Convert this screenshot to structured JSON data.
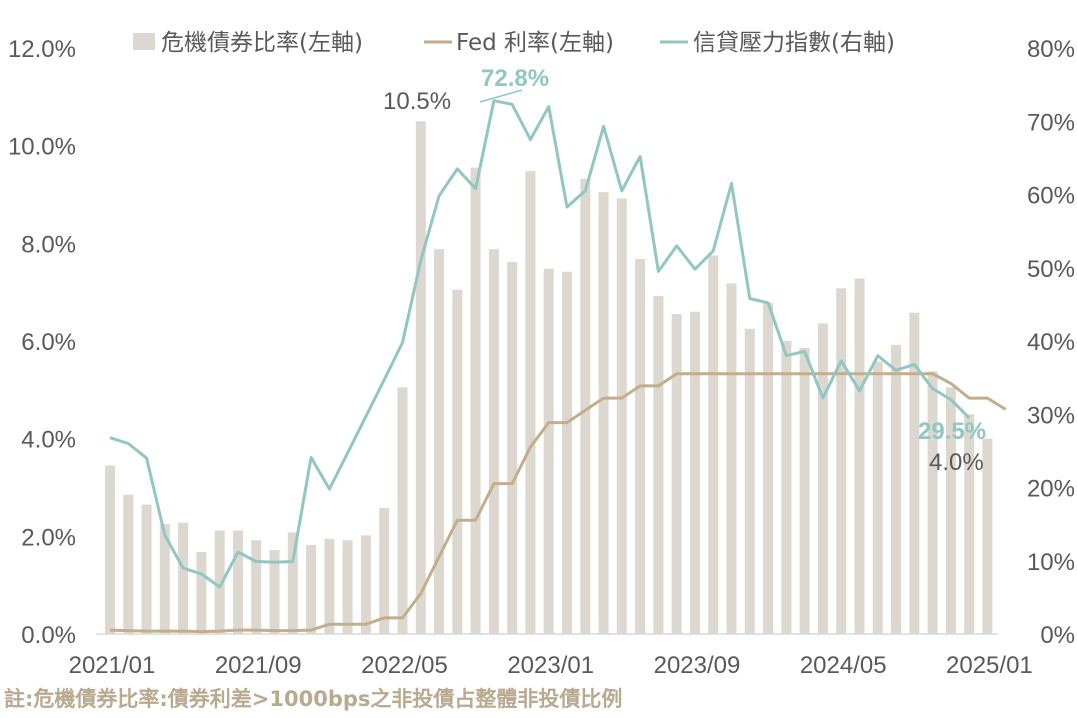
{
  "chart_data": {
    "type": "bar+line",
    "title": "",
    "xlabel": "",
    "ylabel_left": "",
    "ylabel_right": "",
    "x_tick_labels": [
      "2021/01",
      "2021/09",
      "2022/05",
      "2023/01",
      "2023/09",
      "2024/05",
      "2025/01"
    ],
    "y_left_ticks": [
      "0.0%",
      "2.0%",
      "4.0%",
      "6.0%",
      "8.0%",
      "10.0%",
      "12.0%"
    ],
    "y_right_ticks": [
      "0%",
      "10%",
      "20%",
      "30%",
      "40%",
      "50%",
      "60%",
      "70%",
      "80%"
    ],
    "ylim_left": [
      0,
      12
    ],
    "ylim_right": [
      0,
      80
    ],
    "start_month": "2021/01",
    "legend": {
      "placement": "top",
      "items": [
        {
          "label": "危機債券比率(左軸)",
          "kind": "bar",
          "color": "#dcd8d0"
        },
        {
          "label": "Fed 利率(左軸)",
          "kind": "line",
          "color": "#c3ad8b"
        },
        {
          "label": "信貸壓力指數(右軸)",
          "kind": "line",
          "color": "#92c6c0"
        }
      ]
    },
    "series": [
      {
        "name": "危機債券比率(左軸)",
        "axis": "left",
        "type": "bar",
        "color": "#dcd8d0",
        "values": [
          3.45,
          2.85,
          2.65,
          2.25,
          2.28,
          1.68,
          2.12,
          2.12,
          1.92,
          1.72,
          2.08,
          1.82,
          1.95,
          1.92,
          2.02,
          2.58,
          5.05,
          10.5,
          7.88,
          7.05,
          9.55,
          7.88,
          7.62,
          9.48,
          7.48,
          7.42,
          9.32,
          9.05,
          8.92,
          7.68,
          6.92,
          6.55,
          6.6,
          7.75,
          7.18,
          6.25,
          6.78,
          6.0,
          5.86,
          6.36,
          7.08,
          7.28,
          5.58,
          5.92,
          6.58,
          5.38,
          5.05,
          4.5,
          4.0
        ]
      },
      {
        "name": "Fed 利率(左軸)",
        "axis": "left",
        "type": "line",
        "color": "#c3ad8b",
        "values": [
          0.08,
          0.07,
          0.06,
          0.06,
          0.06,
          0.05,
          0.06,
          0.08,
          0.08,
          0.07,
          0.07,
          0.08,
          0.2,
          0.2,
          0.2,
          0.33,
          0.33,
          0.83,
          1.58,
          2.33,
          2.33,
          3.08,
          3.08,
          3.83,
          4.33,
          4.33,
          4.58,
          4.83,
          4.83,
          5.08,
          5.08,
          5.33,
          5.33,
          5.33,
          5.33,
          5.33,
          5.33,
          5.33,
          5.33,
          5.33,
          5.33,
          5.33,
          5.33,
          5.33,
          5.33,
          5.33,
          5.13,
          4.83,
          4.83,
          4.6
        ]
      },
      {
        "name": "信貸壓力指數(右軸)",
        "axis": "right",
        "type": "line",
        "color": "#92c6c0",
        "values": [
          26.8,
          26.0,
          24.0,
          13.5,
          9.0,
          8.2,
          6.4,
          11.2,
          9.9,
          9.8,
          9.9,
          24.1,
          19.8,
          24.7,
          29.7,
          34.7,
          39.8,
          51.0,
          59.8,
          63.5,
          60.8,
          72.8,
          72.3,
          67.5,
          72.0,
          58.3,
          60.5,
          69.3,
          60.5,
          65.2,
          49.5,
          53.0,
          49.8,
          52.3,
          61.5,
          45.8,
          45.2,
          38.0,
          38.6,
          32.2,
          37.3,
          33.2,
          38.0,
          36.0,
          36.8,
          33.5,
          32.0,
          29.5
        ]
      }
    ],
    "annotations": [
      {
        "text": "10.5%",
        "series": "危機債券比率(左軸)",
        "color": "#595959"
      },
      {
        "text": "72.8%",
        "series": "信貸壓力指數(右軸)",
        "color": "#92c6c0"
      },
      {
        "text": "29.5%",
        "series": "信貸壓力指數(右軸)",
        "color": "#92c6c0"
      },
      {
        "text": "4.0%",
        "series": "危機債券比率(左軸)",
        "color": "#595959"
      }
    ]
  },
  "footnote": "註:危機債券比率:債券利差>1000bps之非投債占整體非投債比例"
}
